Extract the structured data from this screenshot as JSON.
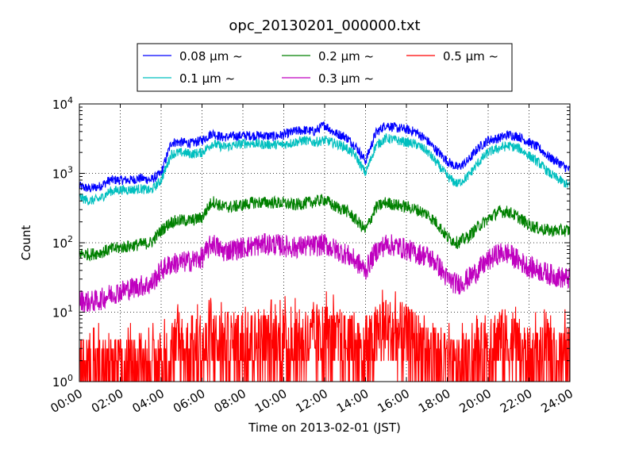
{
  "chart_data": {
    "type": "line",
    "title": "opc_20130201_000000.txt",
    "xlabel": "Time on 2013-02-01 (JST)",
    "ylabel": "Count",
    "yscale": "log",
    "ylim": [
      1,
      10000
    ],
    "xlim": [
      "00:00",
      "24:00"
    ],
    "x_ticks": [
      "00:00",
      "02:00",
      "04:00",
      "06:00",
      "08:00",
      "10:00",
      "12:00",
      "14:00",
      "16:00",
      "18:00",
      "20:00",
      "22:00",
      "24:00"
    ],
    "y_ticks": [
      {
        "base": "10",
        "exp": "0"
      },
      {
        "base": "10",
        "exp": "1"
      },
      {
        "base": "10",
        "exp": "2"
      },
      {
        "base": "10",
        "exp": "3"
      },
      {
        "base": "10",
        "exp": "4"
      }
    ],
    "grid": true,
    "legend_placement": "top-center, above plot",
    "x_hours": [
      0,
      0.5,
      1,
      1.5,
      2,
      2.5,
      3,
      3.5,
      4,
      4.5,
      5,
      5.5,
      6,
      6.5,
      7,
      7.5,
      8,
      8.5,
      9,
      9.5,
      10,
      10.5,
      11,
      11.5,
      12,
      12.5,
      13,
      13.5,
      14,
      14.5,
      15,
      15.5,
      16,
      16.5,
      17,
      17.5,
      18,
      18.5,
      19,
      19.5,
      20,
      20.5,
      21,
      21.5,
      22,
      22.5,
      23,
      23.5,
      24
    ],
    "series": [
      {
        "name": "0.08 μm ~",
        "color": "#0000ff",
        "noise": 0.07,
        "values": [
          650,
          600,
          650,
          800,
          800,
          800,
          850,
          800,
          1000,
          2800,
          2800,
          2700,
          3000,
          3800,
          3300,
          3400,
          3500,
          3500,
          3500,
          3400,
          3600,
          4000,
          4200,
          4000,
          5000,
          3800,
          3400,
          2500,
          1500,
          3800,
          5000,
          4500,
          4300,
          3900,
          3000,
          2100,
          1500,
          1200,
          1500,
          2300,
          3000,
          3200,
          3600,
          3400,
          2800,
          2300,
          1700,
          1400,
          1100
        ]
      },
      {
        "name": "0.1 μm ~",
        "color": "#00bfbf",
        "noise": 0.07,
        "values": [
          450,
          400,
          430,
          550,
          580,
          580,
          600,
          560,
          800,
          1900,
          2000,
          1900,
          2000,
          2700,
          2400,
          2500,
          2700,
          2700,
          2600,
          2600,
          2600,
          2800,
          3000,
          2800,
          3000,
          2700,
          2400,
          1800,
          1000,
          2500,
          3200,
          3000,
          2800,
          2600,
          2100,
          1400,
          900,
          700,
          900,
          1400,
          2000,
          2300,
          2500,
          2300,
          1800,
          1400,
          1000,
          800,
          650
        ]
      },
      {
        "name": "0.2 μm ~",
        "color": "#008000",
        "noise": 0.09,
        "values": [
          70,
          68,
          72,
          80,
          85,
          90,
          95,
          100,
          150,
          200,
          210,
          210,
          230,
          400,
          330,
          330,
          350,
          380,
          380,
          380,
          370,
          350,
          370,
          390,
          420,
          330,
          300,
          220,
          150,
          320,
          380,
          350,
          330,
          300,
          260,
          190,
          120,
          100,
          120,
          170,
          220,
          280,
          280,
          230,
          180,
          160,
          150,
          150,
          150
        ]
      },
      {
        "name": "0.3 μm ~",
        "color": "#bf00bf",
        "noise": 0.16,
        "values": [
          15,
          14,
          15,
          18,
          20,
          22,
          24,
          25,
          40,
          50,
          52,
          55,
          60,
          100,
          75,
          80,
          85,
          90,
          95,
          95,
          90,
          85,
          90,
          90,
          95,
          80,
          70,
          55,
          40,
          75,
          95,
          90,
          80,
          70,
          65,
          50,
          30,
          25,
          30,
          40,
          55,
          70,
          70,
          55,
          45,
          40,
          35,
          32,
          30
        ]
      },
      {
        "name": "0.5 μm ~",
        "color": "#ff0000",
        "noise": 0.45,
        "values": [
          2,
          2,
          2,
          2,
          2,
          2,
          2,
          2,
          2,
          4,
          4,
          4,
          4,
          5,
          5,
          5,
          5,
          5,
          5,
          5,
          5,
          5,
          5,
          5,
          6,
          5,
          5,
          4,
          3,
          6,
          8,
          7,
          6,
          5,
          4,
          3,
          2,
          2,
          2,
          3,
          4,
          6,
          5,
          4,
          3,
          3,
          3,
          3,
          3
        ]
      }
    ]
  }
}
